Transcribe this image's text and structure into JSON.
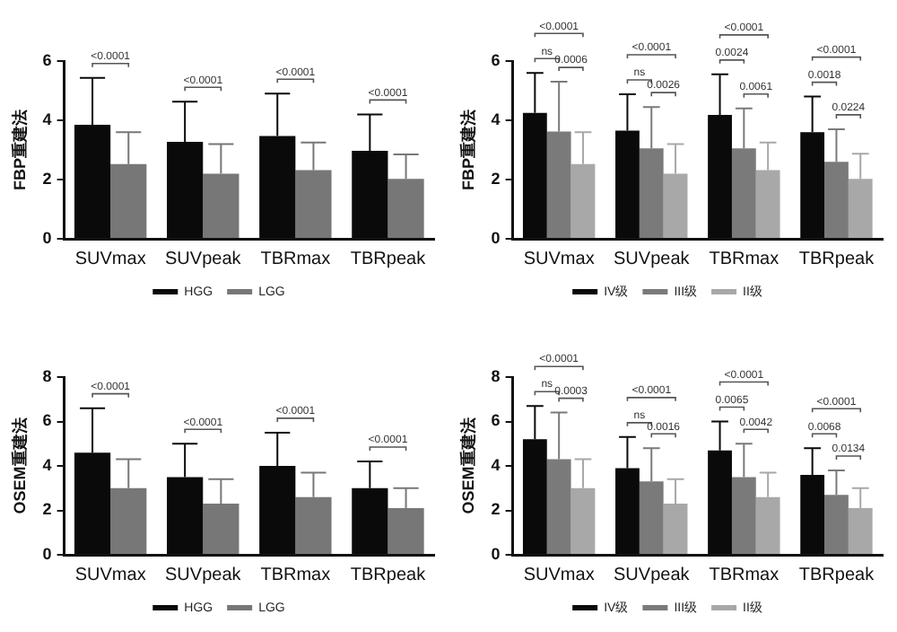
{
  "chart_data": [
    {
      "type": "bar",
      "ylabel": "FBP重建法",
      "categories": [
        "SUVmax",
        "SUVpeak",
        "TBRmax",
        "TBRpeak"
      ],
      "ylim": [
        0,
        6
      ],
      "yticks": [
        0,
        2,
        4,
        6
      ],
      "grid": false,
      "legend": "bottom",
      "series": [
        {
          "name": "HGG",
          "color": "#0a0a0a",
          "values": [
            3.85,
            3.27,
            3.47,
            2.97
          ],
          "errors": [
            [
              3.85,
              5.43
            ],
            [
              3.27,
              4.63
            ],
            [
              3.47,
              4.9
            ],
            [
              2.97,
              4.2
            ]
          ]
        },
        {
          "name": "LGG",
          "color": "#777777",
          "values": [
            2.52,
            2.2,
            2.32,
            2.02
          ],
          "errors": [
            [
              2.52,
              3.6
            ],
            [
              2.2,
              3.2
            ],
            [
              2.32,
              3.25
            ],
            [
              2.02,
              2.85
            ]
          ]
        }
      ],
      "annotations": [
        "<0.0001",
        "<0.0001",
        "<0.0001",
        "<0.0001"
      ]
    },
    {
      "type": "bar",
      "ylabel": "FBP重建法",
      "categories": [
        "SUVmax",
        "SUVpeak",
        "TBRmax",
        "TBRpeak"
      ],
      "ylim": [
        0,
        6
      ],
      "yticks": [
        0,
        2,
        4,
        6
      ],
      "grid": false,
      "legend": "bottom",
      "series": [
        {
          "name": "IV级",
          "color": "#0a0a0a",
          "values": [
            4.25,
            3.65,
            4.18,
            3.6
          ],
          "errors": [
            [
              4.25,
              5.6
            ],
            [
              3.65,
              4.88
            ],
            [
              4.18,
              5.55
            ],
            [
              3.6,
              4.8
            ]
          ]
        },
        {
          "name": "III级",
          "color": "#7a7a7a",
          "values": [
            3.62,
            3.05,
            3.05,
            2.6
          ],
          "errors": [
            [
              3.62,
              5.3
            ],
            [
              3.05,
              4.45
            ],
            [
              3.05,
              4.4
            ],
            [
              2.6,
              3.7
            ]
          ]
        },
        {
          "name": "II级",
          "color": "#a8a8a8",
          "values": [
            2.52,
            2.2,
            2.32,
            2.02
          ],
          "errors": [
            [
              2.52,
              3.6
            ],
            [
              2.2,
              3.2
            ],
            [
              2.32,
              3.25
            ],
            [
              2.02,
              2.87
            ]
          ]
        }
      ],
      "annotations": [
        "<0.0001",
        "ns",
        "0.0006",
        "<0.0001",
        "ns",
        "0.0026",
        "<0.0001",
        "0.0024",
        "0.0061",
        "<0.0001",
        "0.0018",
        "0.0224"
      ]
    },
    {
      "type": "bar",
      "ylabel": "OSEM重建法",
      "categories": [
        "SUVmax",
        "SUVpeak",
        "TBRmax",
        "TBRpeak"
      ],
      "ylim": [
        0,
        8
      ],
      "yticks": [
        0,
        2,
        4,
        6,
        8
      ],
      "grid": false,
      "legend": "bottom",
      "series": [
        {
          "name": "HGG",
          "color": "#0a0a0a",
          "values": [
            4.6,
            3.5,
            4,
            3
          ],
          "errors": [
            [
              4.6,
              6.6
            ],
            [
              3.5,
              5
            ],
            [
              4,
              5.5
            ],
            [
              3,
              4.2
            ]
          ]
        },
        {
          "name": "LGG",
          "color": "#777777",
          "values": [
            3,
            2.3,
            2.6,
            2.1
          ],
          "errors": [
            [
              3,
              4.3
            ],
            [
              2.3,
              3.4
            ],
            [
              2.6,
              3.7
            ],
            [
              2.1,
              3
            ]
          ]
        }
      ],
      "annotations": [
        "<0.0001",
        "<0.0001",
        "<0.0001",
        "<0.0001"
      ]
    },
    {
      "type": "bar",
      "ylabel": "OSEM重建法",
      "categories": [
        "SUVmax",
        "SUVpeak",
        "TBRmax",
        "TBRpeak"
      ],
      "ylim": [
        0,
        8
      ],
      "yticks": [
        0,
        2,
        4,
        6,
        8
      ],
      "grid": false,
      "legend": "bottom",
      "series": [
        {
          "name": "IV级",
          "color": "#0a0a0a",
          "values": [
            5.2,
            3.9,
            4.7,
            3.6
          ],
          "errors": [
            [
              5.2,
              6.7
            ],
            [
              3.9,
              5.3
            ],
            [
              4.7,
              6
            ],
            [
              3.6,
              4.8
            ]
          ]
        },
        {
          "name": "III级",
          "color": "#7a7a7a",
          "values": [
            4.3,
            3.3,
            3.5,
            2.7
          ],
          "errors": [
            [
              4.3,
              6.4
            ],
            [
              3.3,
              4.8
            ],
            [
              3.5,
              5
            ],
            [
              2.7,
              3.8
            ]
          ]
        },
        {
          "name": "II级",
          "color": "#a8a8a8",
          "values": [
            3,
            2.3,
            2.6,
            2.1
          ],
          "errors": [
            [
              3,
              4.3
            ],
            [
              2.3,
              3.4
            ],
            [
              2.6,
              3.7
            ],
            [
              2.1,
              3
            ]
          ]
        }
      ],
      "annotations": [
        "<0.0001",
        "ns",
        "0.0003",
        "<0.0001",
        "ns",
        "0.0016",
        "<0.0001",
        "0.0065",
        "0.0042",
        "<0.0001",
        "0.0068",
        "0.0134"
      ]
    }
  ]
}
